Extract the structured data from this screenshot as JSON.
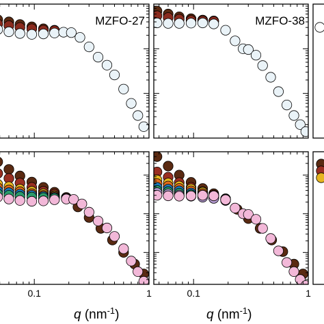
{
  "chart_data": [
    {
      "type": "scatter",
      "panel": "top-middle",
      "label": "MZFO-27",
      "xscale": "log",
      "yscale": "log",
      "xlim": [
        0.045,
        1.0
      ],
      "x_tick_labels": [],
      "series": [
        {
          "color": "#5a2a12",
          "x": [
            0.048,
            0.06,
            0.075,
            0.095,
            0.12,
            0.15
          ],
          "y": [
            45,
            40,
            35,
            31,
            28,
            26
          ]
        },
        {
          "color": "#8a2b1e",
          "x": [
            0.048,
            0.06,
            0.075,
            0.095,
            0.12,
            0.15
          ],
          "y": [
            36,
            33,
            30,
            28,
            26,
            25.5
          ]
        },
        {
          "color": "#eaf3f8",
          "x": [
            0.048,
            0.06,
            0.075,
            0.095,
            0.12,
            0.15,
            0.18,
            0.21,
            0.25,
            0.3,
            0.36,
            0.43,
            0.5,
            0.6,
            0.7,
            0.8,
            0.9
          ],
          "y": [
            27,
            24,
            22,
            21,
            21.5,
            22.5,
            23.5,
            23,
            18,
            11,
            6.5,
            4.3,
            2.6,
            1.25,
            0.6,
            0.32,
            0.18
          ]
        }
      ]
    },
    {
      "type": "scatter",
      "panel": "top-right",
      "label": "MZFO-38",
      "xscale": "log",
      "yscale": "log",
      "xlim": [
        0.045,
        1.0
      ],
      "x_tick_labels": [],
      "series": [
        {
          "color": "#5a2a12",
          "x": [
            0.048,
            0.06,
            0.075,
            0.095,
            0.12,
            0.15
          ],
          "y": [
            70,
            60,
            52,
            47,
            44,
            42
          ]
        },
        {
          "color": "#8a2b1e",
          "x": [
            0.048,
            0.06,
            0.075,
            0.095,
            0.12,
            0.15
          ],
          "y": [
            55,
            50,
            46,
            43,
            42,
            41
          ]
        },
        {
          "color": "#eaf3f8",
          "x": [
            0.048,
            0.06,
            0.075,
            0.095,
            0.12,
            0.15,
            0.19,
            0.23,
            0.27,
            0.3,
            0.35,
            0.4,
            0.47,
            0.55,
            0.65,
            0.75,
            0.85,
            0.95
          ],
          "y": [
            38,
            37,
            37,
            37.5,
            38,
            36,
            26,
            15,
            10,
            9.6,
            7.2,
            4.2,
            2.3,
            1.1,
            0.55,
            0.32,
            0.2,
            0.14
          ]
        }
      ]
    },
    {
      "type": "scatter",
      "panel": "bottom-middle",
      "label": "",
      "xscale": "log",
      "yscale": "log",
      "xlim": [
        0.045,
        1.0
      ],
      "x_tick_labels": [
        "0.1",
        "1"
      ],
      "series": [
        {
          "color": "#5a2a12",
          "x": [
            0.048,
            0.06,
            0.075,
            0.095,
            0.12,
            0.15,
            0.19,
            0.24,
            0.3,
            0.38,
            0.48,
            0.6,
            0.75,
            0.9
          ],
          "y": [
            220,
            140,
            95,
            66,
            48,
            36,
            26,
            15,
            8,
            4.2,
            2.1,
            1,
            0.5,
            0.28
          ]
        },
        {
          "color": "#9a2f22",
          "x": [
            0.048,
            0.06,
            0.075,
            0.095,
            0.12,
            0.15,
            0.19
          ],
          "y": [
            110,
            82,
            62,
            48,
            38,
            32,
            26
          ]
        },
        {
          "color": "#e6b520",
          "x": [
            0.048,
            0.06,
            0.075,
            0.095,
            0.12,
            0.15,
            0.19
          ],
          "y": [
            58,
            50,
            43,
            38,
            33,
            29.5,
            26.5
          ]
        },
        {
          "color": "#e06a1c",
          "x": [
            0.048,
            0.06,
            0.075,
            0.095,
            0.12,
            0.15,
            0.19
          ],
          "y": [
            47,
            41,
            37,
            33,
            30,
            28,
            26
          ]
        },
        {
          "color": "#1f7ab8",
          "x": [
            0.048,
            0.06,
            0.075,
            0.095,
            0.12,
            0.15,
            0.19
          ],
          "y": [
            39,
            35,
            32,
            30,
            28,
            26.5,
            25
          ]
        },
        {
          "color": "#2a9a6a",
          "x": [
            0.048,
            0.06,
            0.075,
            0.095,
            0.12,
            0.15,
            0.19
          ],
          "y": [
            33,
            30,
            28,
            27,
            26,
            25.2,
            24.6
          ]
        },
        {
          "color": "#f2b8d8",
          "x": [
            0.048,
            0.06,
            0.075,
            0.095,
            0.12,
            0.15,
            0.19,
            0.22,
            0.26,
            0.3,
            0.36,
            0.43,
            0.5,
            0.6,
            0.7,
            0.8,
            0.9
          ],
          "y": [
            27,
            24,
            22,
            21,
            21.5,
            23,
            24,
            23.5,
            18,
            11,
            6.5,
            4.3,
            2.6,
            1.25,
            0.6,
            0.32,
            0.18
          ]
        }
      ]
    },
    {
      "type": "scatter",
      "panel": "bottom-right",
      "label": "",
      "xscale": "log",
      "yscale": "log",
      "xlim": [
        0.045,
        1.0
      ],
      "x_tick_labels": [
        "0.1",
        "1"
      ],
      "series": [
        {
          "color": "#5a2a12",
          "x": [
            0.048,
            0.06,
            0.075,
            0.095,
            0.12,
            0.15,
            0.19,
            0.24,
            0.3,
            0.38,
            0.48,
            0.6,
            0.75,
            0.9
          ],
          "y": [
            300,
            170,
            100,
            65,
            45,
            33,
            22,
            13,
            7.5,
            4.2,
            2.1,
            1.05,
            0.5,
            0.28
          ]
        },
        {
          "color": "#9a2f22",
          "x": [
            0.048,
            0.06,
            0.075,
            0.095,
            0.12,
            0.15,
            0.19
          ],
          "y": [
            120,
            88,
            64,
            48,
            37,
            30,
            24
          ]
        },
        {
          "color": "#e6b520",
          "x": [
            0.048,
            0.06,
            0.075,
            0.095,
            0.12,
            0.15,
            0.19
          ],
          "y": [
            75,
            62,
            52,
            44,
            36,
            30,
            24.5
          ]
        },
        {
          "color": "#e06a1c",
          "x": [
            0.048,
            0.06,
            0.075,
            0.095,
            0.12,
            0.15,
            0.19
          ],
          "y": [
            60,
            52,
            45,
            39,
            33,
            28.5,
            24
          ]
        },
        {
          "color": "#1f7ab8",
          "x": [
            0.048,
            0.06,
            0.075,
            0.095,
            0.12,
            0.15,
            0.19
          ],
          "y": [
            48,
            43,
            39,
            34.5,
            30.5,
            27,
            23.5
          ]
        },
        {
          "color": "#2a9a6a",
          "x": [
            0.048,
            0.06,
            0.075,
            0.095,
            0.12,
            0.15,
            0.19
          ],
          "y": [
            40,
            37,
            34,
            31,
            28.5,
            26,
            23
          ]
        },
        {
          "color": "#b49ad0",
          "x": [
            0.048,
            0.06,
            0.075,
            0.095,
            0.12,
            0.15,
            0.19
          ],
          "y": [
            35,
            32.5,
            30.5,
            28.5,
            26.8,
            25,
            22.8
          ]
        },
        {
          "color": "#f2b8d8",
          "x": [
            0.048,
            0.06,
            0.075,
            0.095,
            0.12,
            0.15,
            0.19,
            0.23,
            0.27,
            0.3,
            0.35,
            0.4,
            0.47,
            0.55,
            0.65,
            0.75,
            0.85,
            0.95
          ],
          "y": [
            30,
            29,
            28.5,
            29,
            30,
            29,
            23,
            14,
            10,
            9.6,
            7.2,
            4.2,
            2.3,
            1.1,
            0.55,
            0.32,
            0.2,
            0.14
          ]
        }
      ]
    }
  ],
  "axis_label": {
    "var": "q",
    "unit": " (nm",
    "exp": "-1",
    "close": ")"
  },
  "right_edge_panels": {
    "top_fill": "#ffffff",
    "bottom_colors": [
      "#5a2a12",
      "#9a2f22",
      "#e6b520"
    ]
  }
}
